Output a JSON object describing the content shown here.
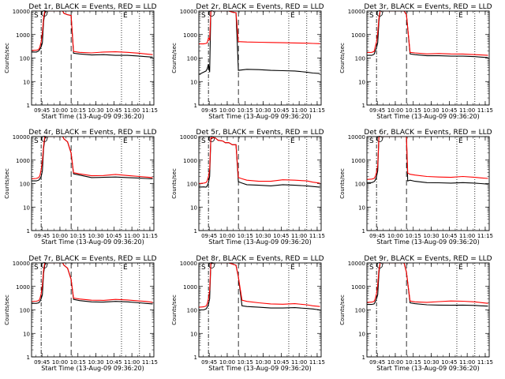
{
  "figure": {
    "axis_ylabel": "Counts/sec",
    "axis_xlabel": "Start Time (13-Aug-09 09:36:20)",
    "x_tick_labels": [
      "09:45",
      "10:00",
      "10:15",
      "10:30",
      "10:45",
      "11:00",
      "11:15"
    ],
    "y_tick_labels": [
      "1",
      "10",
      "100",
      "1000",
      "10000"
    ],
    "event_markers": [
      "S",
      "E"
    ],
    "colors": {
      "events": "#000000",
      "lld": "#ff0000"
    }
  },
  "chart_data": [
    {
      "type": "line",
      "title": "Det 1r, BLACK = Events, RED = LLD",
      "xlabel": "Start Time (13-Aug-09 09:36:20)",
      "ylabel": "Counts/sec",
      "x_unit": "minutes after 09:36:20",
      "xlim": [
        0,
        102
      ],
      "ylim": [
        1,
        10000
      ],
      "y_scale": "log",
      "x": [
        0,
        4,
        6,
        7,
        8,
        9,
        10,
        11,
        12,
        14,
        17,
        20,
        23,
        26,
        27,
        30,
        33,
        35,
        40,
        50,
        60,
        70,
        80,
        90,
        95,
        101
      ],
      "series": [
        {
          "name": "Events",
          "values": [
            180,
            180,
            200,
            240,
            300,
            450,
            3500,
            8000,
            10000,
            10000,
            10000,
            10000,
            10000,
            10000,
            8000,
            7000,
            6500,
            160,
            150,
            135,
            140,
            130,
            130,
            120,
            115,
            110
          ]
        },
        {
          "name": "LLD",
          "values": [
            210,
            215,
            230,
            300,
            500,
            1200,
            5000,
            10000,
            10000,
            10000,
            10000,
            10000,
            10000,
            10000,
            8000,
            7000,
            6500,
            190,
            175,
            165,
            180,
            185,
            175,
            160,
            150,
            140
          ]
        }
      ],
      "markers": {
        "dashdot": 8,
        "dashed": 33,
        "dotted": [
          75,
          90
        ]
      }
    },
    {
      "type": "line",
      "title": "Det 2r, BLACK = Events, RED = LLD",
      "xlabel": "Start Time (13-Aug-09 09:36:20)",
      "ylabel": "Counts/sec",
      "x_unit": "minutes after 09:36:20",
      "xlim": [
        0,
        102
      ],
      "ylim": [
        1,
        10000
      ],
      "y_scale": "log",
      "x": [
        0,
        4,
        6,
        7,
        8,
        9,
        10,
        12,
        14,
        20,
        25,
        28,
        31,
        33,
        40,
        50,
        60,
        70,
        80,
        90,
        95,
        101
      ],
      "series": [
        {
          "name": "Events",
          "values": [
            20,
            25,
            28,
            35,
            55,
            25,
            10000,
            10000,
            10000,
            10000,
            10000,
            9000,
            8500,
            30,
            33,
            32,
            30,
            29,
            28,
            25,
            23,
            22
          ]
        },
        {
          "name": "LLD",
          "values": [
            400,
            400,
            420,
            450,
            700,
            600,
            10000,
            10000,
            10000,
            10000,
            10000,
            9000,
            8500,
            500,
            480,
            470,
            460,
            450,
            440,
            430,
            420,
            410
          ]
        }
      ],
      "markers": {
        "dashdot": 8,
        "dashed": 33,
        "dotted": [
          75,
          90
        ]
      }
    },
    {
      "type": "line",
      "title": "Det 3r, BLACK = Events, RED = LLD",
      "xlabel": "Start Time (13-Aug-09 09:36:20)",
      "ylabel": "Counts/sec",
      "x_unit": "minutes after 09:36:20",
      "xlim": [
        0,
        102
      ],
      "ylim": [
        1,
        10000
      ],
      "y_scale": "log",
      "x": [
        0,
        4,
        6,
        7,
        8,
        9,
        10,
        11,
        13,
        16,
        20,
        24,
        28,
        31,
        33,
        36,
        40,
        50,
        60,
        70,
        80,
        90,
        95,
        101
      ],
      "series": [
        {
          "name": "Events",
          "values": [
            130,
            130,
            145,
            200,
            280,
            450,
            3500,
            10000,
            10000,
            10000,
            10000,
            10000,
            10000,
            10000,
            7000,
            150,
            140,
            125,
            125,
            120,
            120,
            115,
            110,
            105
          ]
        },
        {
          "name": "LLD",
          "values": [
            170,
            175,
            190,
            300,
            500,
            1200,
            5000,
            10000,
            10000,
            10000,
            10000,
            10000,
            10000,
            10000,
            7000,
            175,
            165,
            150,
            155,
            150,
            148,
            140,
            135,
            130
          ]
        }
      ],
      "markers": {
        "dashdot": 8,
        "dashed": 33,
        "dotted": [
          75,
          90
        ]
      }
    },
    {
      "type": "line",
      "title": "Det 4r, BLACK = Events, RED = LLD",
      "xlabel": "Start Time (13-Aug-09 09:36:20)",
      "ylabel": "Counts/sec",
      "x_unit": "minutes after 09:36:20",
      "xlim": [
        0,
        102
      ],
      "ylim": [
        1,
        10000
      ],
      "y_scale": "log",
      "x": [
        0,
        4,
        6,
        7,
        8,
        9,
        10,
        11,
        12,
        14,
        17,
        20,
        23,
        26,
        27,
        30,
        33,
        35,
        40,
        50,
        60,
        70,
        80,
        90,
        95,
        101
      ],
      "series": [
        {
          "name": "Events",
          "values": [
            130,
            130,
            140,
            160,
            200,
            350,
            3000,
            8000,
            10000,
            10000,
            10000,
            10000,
            10000,
            10000,
            8000,
            6000,
            2000,
            260,
            230,
            180,
            185,
            190,
            180,
            170,
            165,
            160
          ]
        },
        {
          "name": "LLD",
          "values": [
            160,
            165,
            180,
            220,
            400,
            900,
            4000,
            10000,
            10000,
            10000,
            10000,
            10000,
            10000,
            10000,
            8000,
            6000,
            2000,
            290,
            260,
            215,
            220,
            245,
            220,
            200,
            190,
            180
          ]
        }
      ],
      "markers": {
        "dashdot": 8,
        "dashed": 33,
        "dotted": [
          75,
          90
        ]
      }
    },
    {
      "type": "line",
      "title": "Det 5r, BLACK = Events, RED = LLD",
      "xlabel": "Start Time (13-Aug-09 09:36:20)",
      "ylabel": "Counts/sec",
      "x_unit": "minutes after 09:36:20",
      "xlim": [
        0,
        102
      ],
      "ylim": [
        1,
        10000
      ],
      "y_scale": "log",
      "x": [
        0,
        4,
        6,
        7,
        8,
        9,
        10,
        12,
        14,
        16,
        20,
        22,
        25,
        28,
        31,
        33,
        36,
        40,
        50,
        60,
        70,
        80,
        90,
        95,
        101
      ],
      "series": [
        {
          "name": "Events",
          "values": [
            70,
            72,
            70,
            80,
            110,
            200,
            8000,
            9000,
            8500,
            7000,
            6500,
            5500,
            5500,
            4500,
            4500,
            120,
            105,
            90,
            85,
            80,
            90,
            85,
            80,
            75,
            70
          ]
        },
        {
          "name": "LLD",
          "values": [
            100,
            105,
            110,
            130,
            200,
            400,
            9000,
            9000,
            8500,
            7000,
            6500,
            5500,
            5500,
            4500,
            4500,
            180,
            160,
            140,
            125,
            125,
            145,
            140,
            130,
            115,
            105
          ]
        }
      ],
      "markers": {
        "dashdot": 8,
        "dashed": 33,
        "dotted": [
          75,
          90
        ]
      }
    },
    {
      "type": "line",
      "title": "Det 6r, BLACK = Events, RED = LLD",
      "xlabel": "Start Time (13-Aug-09 09:36:20)",
      "ylabel": "Counts/sec",
      "x_unit": "minutes after 09:36:20",
      "xlim": [
        0,
        102
      ],
      "ylim": [
        1,
        10000
      ],
      "y_scale": "log",
      "x": [
        0,
        4,
        6,
        7,
        8,
        9,
        10,
        12,
        15,
        18,
        22,
        26,
        30,
        33,
        34,
        36,
        40,
        50,
        60,
        70,
        80,
        90,
        95,
        101
      ],
      "series": [
        {
          "name": "Events",
          "values": [
            110,
            110,
            120,
            140,
            200,
            350,
            10000,
            10000,
            10000,
            10000,
            10000,
            10000,
            10000,
            10000,
            130,
            140,
            125,
            110,
            108,
            105,
            110,
            105,
            100,
            95
          ]
        },
        {
          "name": "LLD",
          "values": [
            150,
            155,
            165,
            200,
            300,
            600,
            10000,
            10000,
            10000,
            10000,
            10000,
            10000,
            10000,
            10000,
            280,
            250,
            230,
            200,
            190,
            185,
            200,
            185,
            175,
            165
          ]
        }
      ],
      "markers": {
        "dashdot": 8,
        "dashed": 33,
        "dotted": [
          75,
          90
        ]
      }
    },
    {
      "type": "line",
      "title": "Det 7r, BLACK = Events, RED = LLD",
      "xlabel": "Start Time (13-Aug-09 09:36:20)",
      "ylabel": "Counts/sec",
      "x_unit": "minutes after 09:36:20",
      "xlim": [
        0,
        102
      ],
      "ylim": [
        1,
        10000
      ],
      "y_scale": "log",
      "x": [
        0,
        4,
        6,
        7,
        8,
        9,
        10,
        11,
        12,
        14,
        17,
        20,
        23,
        26,
        27,
        30,
        33,
        35,
        40,
        50,
        60,
        70,
        80,
        90,
        95,
        101
      ],
      "series": [
        {
          "name": "Events",
          "values": [
            190,
            190,
            200,
            230,
            300,
            450,
            3500,
            8000,
            10000,
            10000,
            10000,
            10000,
            10000,
            10000,
            8000,
            6000,
            2000,
            280,
            250,
            220,
            215,
            230,
            220,
            200,
            190,
            180
          ]
        },
        {
          "name": "LLD",
          "values": [
            230,
            235,
            250,
            300,
            500,
            1100,
            5000,
            10000,
            10000,
            10000,
            10000,
            10000,
            10000,
            10000,
            8000,
            6000,
            2000,
            320,
            290,
            260,
            255,
            280,
            265,
            240,
            230,
            210
          ]
        }
      ],
      "markers": {
        "dashdot": 8,
        "dashed": 33,
        "dotted": [
          75,
          90
        ]
      }
    },
    {
      "type": "line",
      "title": "Det 8r, BLACK = Events, RED = LLD",
      "xlabel": "Start Time (13-Aug-09 09:36:20)",
      "ylabel": "Counts/sec",
      "x_unit": "minutes after 09:36:20",
      "xlim": [
        0,
        102
      ],
      "ylim": [
        1,
        10000
      ],
      "y_scale": "log",
      "x": [
        0,
        4,
        6,
        7,
        8,
        9,
        10,
        12,
        15,
        20,
        25,
        28,
        31,
        33,
        36,
        40,
        50,
        60,
        70,
        80,
        90,
        95,
        101
      ],
      "series": [
        {
          "name": "Events",
          "values": [
            100,
            100,
            110,
            130,
            170,
            300,
            9000,
            10000,
            10000,
            10000,
            10000,
            9000,
            8000,
            2500,
            150,
            140,
            130,
            120,
            120,
            125,
            115,
            110,
            100
          ]
        },
        {
          "name": "LLD",
          "values": [
            130,
            135,
            145,
            180,
            300,
            700,
            10000,
            10000,
            10000,
            10000,
            10000,
            9000,
            8000,
            2500,
            260,
            230,
            200,
            180,
            175,
            185,
            165,
            150,
            140
          ]
        }
      ],
      "markers": {
        "dashdot": 8,
        "dashed": 33,
        "dotted": [
          75,
          90
        ]
      }
    },
    {
      "type": "line",
      "title": "Det 9r, BLACK = Events, RED = LLD",
      "xlabel": "Start Time (13-Aug-09 09:36:20)",
      "ylabel": "Counts/sec",
      "x_unit": "minutes after 09:36:20",
      "xlim": [
        0,
        102
      ],
      "ylim": [
        1,
        10000
      ],
      "y_scale": "log",
      "x": [
        0,
        4,
        6,
        7,
        8,
        9,
        10,
        11,
        13,
        16,
        20,
        24,
        28,
        31,
        33,
        36,
        40,
        50,
        60,
        70,
        80,
        90,
        95,
        101
      ],
      "series": [
        {
          "name": "Events",
          "values": [
            170,
            170,
            180,
            220,
            300,
            450,
            3500,
            10000,
            10000,
            10000,
            10000,
            10000,
            10000,
            10000,
            4000,
            200,
            185,
            165,
            160,
            158,
            160,
            155,
            150,
            145
          ]
        },
        {
          "name": "LLD",
          "values": [
            210,
            215,
            230,
            300,
            500,
            1200,
            5000,
            10000,
            10000,
            10000,
            10000,
            10000,
            10000,
            10000,
            4000,
            240,
            220,
            210,
            225,
            240,
            235,
            220,
            205,
            190
          ]
        }
      ],
      "markers": {
        "dashdot": 8,
        "dashed": 33,
        "dotted": [
          75,
          90
        ]
      }
    }
  ]
}
